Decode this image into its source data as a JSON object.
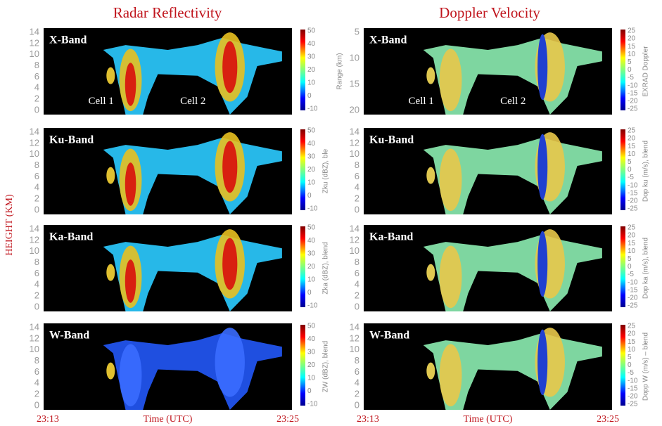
{
  "titles": [
    "Radar Reflectivity",
    "Doppler Velocity"
  ],
  "y_axis_label": "HEIGHT (KM)",
  "x_axes": [
    {
      "start": "23:13",
      "label": "Time (UTC)",
      "end": "23:25"
    },
    {
      "start": "23:13",
      "label": "Time (UTC)",
      "end": "23:25"
    }
  ],
  "columns": [
    {
      "panels": [
        {
          "band": "X-Band",
          "annotations": [
            "Cell 1",
            "Cell 2"
          ],
          "yticks": [
            "14",
            "12",
            "10",
            "8",
            "6",
            "4",
            "2",
            "0"
          ],
          "colorbar_ticks": [
            "50",
            "40",
            "30",
            "20",
            "10",
            "0",
            "-10"
          ]
        },
        {
          "band": "Ku-Band",
          "yticks": [
            "14",
            "12",
            "10",
            "8",
            "6",
            "4",
            "2",
            "0"
          ],
          "colorbar_ticks": [
            "50",
            "40",
            "30",
            "20",
            "10",
            "0",
            "-10"
          ],
          "colorbar_label": "Zku (dBZ), ble"
        },
        {
          "band": "Ka-Band",
          "yticks": [
            "14",
            "12",
            "10",
            "8",
            "6",
            "4",
            "2",
            "0"
          ],
          "colorbar_ticks": [
            "50",
            "40",
            "30",
            "20",
            "10",
            "0",
            "-10"
          ],
          "colorbar_label": "Zka (dBZ), blend"
        },
        {
          "band": "W-Band",
          "yticks": [
            "14",
            "12",
            "10",
            "8",
            "6",
            "4",
            "2",
            "0"
          ],
          "colorbar_ticks": [
            "50",
            "40",
            "30",
            "20",
            "10",
            "0",
            "-10"
          ],
          "colorbar_label": "ZW (dBZ), blend"
        }
      ]
    },
    {
      "panels": [
        {
          "band": "X-Band",
          "annotations": [
            "Cell 1",
            "Cell 2"
          ],
          "yticks": [
            "5",
            "10",
            "15",
            "20"
          ],
          "y_label": "Range (km)",
          "colorbar_ticks": [
            "25",
            "20",
            "15",
            "10",
            "5",
            "0",
            "-5",
            "-10",
            "-15",
            "-20",
            "-25"
          ],
          "colorbar_label": "EXRAD Doppler"
        },
        {
          "band": "Ku-Band",
          "yticks": [
            "14",
            "12",
            "10",
            "8",
            "6",
            "4",
            "2",
            "0"
          ],
          "colorbar_ticks": [
            "25",
            "20",
            "15",
            "10",
            "5",
            "0",
            "-5",
            "-10",
            "-15",
            "-20",
            "-25"
          ],
          "colorbar_label": "Dop ku (m/s), blend"
        },
        {
          "band": "Ka-Band",
          "yticks": [
            "14",
            "12",
            "10",
            "8",
            "6",
            "4",
            "2",
            "0"
          ],
          "colorbar_ticks": [
            "25",
            "20",
            "15",
            "10",
            "5",
            "0",
            "-5",
            "-10",
            "-15",
            "-20",
            "-25"
          ],
          "colorbar_label": "Dop ka (m/s), blend"
        },
        {
          "band": "W-Band",
          "yticks": [
            "14",
            "12",
            "10",
            "8",
            "6",
            "4",
            "2",
            "0"
          ],
          "colorbar_ticks": [
            "25",
            "20",
            "15",
            "10",
            "5",
            "0",
            "-5",
            "-10",
            "-15",
            "-20",
            "-25"
          ],
          "colorbar_label": "Dopp W (m/s) – blend"
        }
      ]
    }
  ]
}
